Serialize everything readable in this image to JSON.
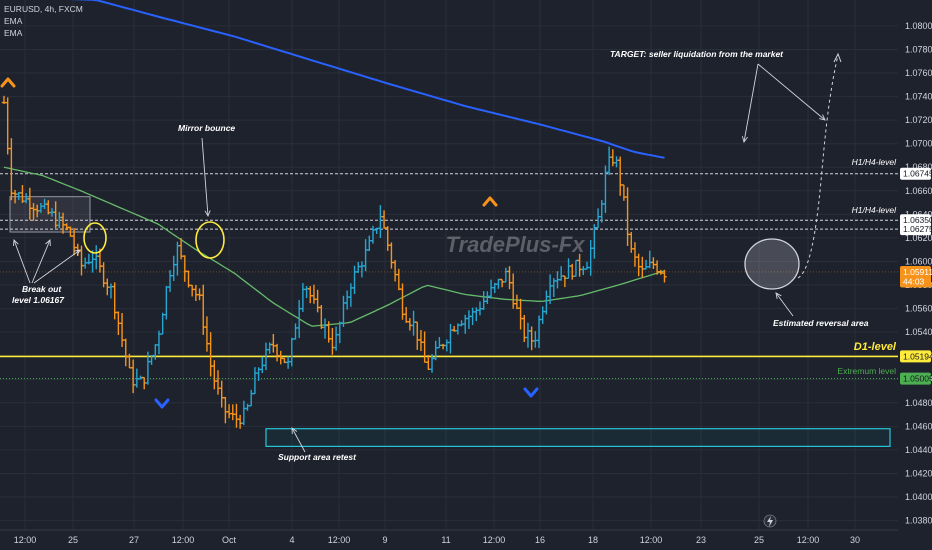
{
  "header": {
    "symbol": "EURUSD, 4h, FXCM",
    "indicator_1": "EMA",
    "indicator_2": "EMA"
  },
  "watermark": "TradePlus-Fx",
  "chart_data": {
    "type": "candlestick",
    "title": "EURUSD, 4h, FXCM",
    "ylim": [
      1.0372,
      1.0822
    ],
    "y_ticks": [
      "1.08000",
      "1.07800",
      "1.07600",
      "1.07400",
      "1.07200",
      "1.07000",
      "1.06800",
      "1.06600",
      "1.06400",
      "1.06200",
      "1.06000",
      "1.05800",
      "1.05600",
      "1.05400",
      "1.05200",
      "1.05000",
      "1.04800",
      "1.04600",
      "1.04400",
      "1.04200",
      "1.04000",
      "1.03800"
    ],
    "x_ticks": [
      "12:00",
      "25",
      "27",
      "12:00",
      "Oct",
      "4",
      "12:00",
      "9",
      "11",
      "12:00",
      "16",
      "18",
      "12:00",
      "23",
      "25",
      "12:00",
      "30"
    ],
    "price_labels": [
      {
        "text": "1.06745",
        "value": 1.06745,
        "color": "#ffffff",
        "text_color": "#131722"
      },
      {
        "text": "1.06350",
        "value": 1.0635,
        "color": "#ffffff",
        "text_color": "#131722"
      },
      {
        "text": "1.06275",
        "value": 1.06275,
        "color": "#ffffff",
        "text_color": "#131722"
      },
      {
        "text": "1.05911",
        "value": 1.05911,
        "color": "#f7931a",
        "text_color": "#ffffff"
      },
      {
        "text": "44:03",
        "value": 1.0583,
        "color": "#f7931a",
        "text_color": "#ffffff"
      },
      {
        "text": "1.05194",
        "value": 1.05194,
        "color": "#ffeb3b",
        "text_color": "#131722"
      },
      {
        "text": "1.05005",
        "value": 1.05005,
        "color": "#4caf50",
        "text_color": "#131722"
      }
    ],
    "levels": [
      {
        "label": "H1/H4-level",
        "value": 1.06745,
        "style": "dashed",
        "color": "#d1d4dc"
      },
      {
        "label": "H1/H4-level",
        "value": 1.0635,
        "style": "dashed",
        "color": "#d1d4dc"
      },
      {
        "label": "",
        "value": 1.06275,
        "style": "dashed",
        "color": "#d1d4dc"
      },
      {
        "label": "D1-level",
        "value": 1.05194,
        "style": "solid",
        "color": "#ffeb3b"
      },
      {
        "label": "Extremum  level",
        "value": 1.05005,
        "style": "dotted",
        "color": "#4caf50"
      }
    ],
    "annotations": [
      {
        "text": "Break out",
        "text2": "level 1.06167"
      },
      {
        "text": "Mirror bounce"
      },
      {
        "text": "Support area retest"
      },
      {
        "text": "TARGET: seller liquidation from the market"
      },
      {
        "text": "Estimated reversal area"
      }
    ],
    "support_zone": {
      "top": 1.0458,
      "bottom": 1.0443
    },
    "ema_slow_anchors": [
      {
        "t": 0,
        "v": 1.0825
      },
      {
        "t": 0.12,
        "v": 1.0822
      },
      {
        "t": 0.2,
        "v": 1.0808
      },
      {
        "t": 0.3,
        "v": 1.0791
      },
      {
        "t": 0.4,
        "v": 1.0771
      },
      {
        "t": 0.5,
        "v": 1.0751
      },
      {
        "t": 0.6,
        "v": 1.0732
      },
      {
        "t": 0.7,
        "v": 1.0716
      },
      {
        "t": 0.78,
        "v": 1.0702
      },
      {
        "t": 0.82,
        "v": 1.0693
      },
      {
        "t": 0.86,
        "v": 1.0688
      }
    ],
    "ema_fast_anchors": [
      {
        "t": 0,
        "v": 1.068
      },
      {
        "t": 0.05,
        "v": 1.0673
      },
      {
        "t": 0.1,
        "v": 1.066
      },
      {
        "t": 0.15,
        "v": 1.0646
      },
      {
        "t": 0.2,
        "v": 1.0632
      },
      {
        "t": 0.25,
        "v": 1.061
      },
      {
        "t": 0.3,
        "v": 1.059
      },
      {
        "t": 0.35,
        "v": 1.0565
      },
      {
        "t": 0.4,
        "v": 1.0545
      },
      {
        "t": 0.45,
        "v": 1.0548
      },
      {
        "t": 0.5,
        "v": 1.0563
      },
      {
        "t": 0.55,
        "v": 1.058
      },
      {
        "t": 0.6,
        "v": 1.0572
      },
      {
        "t": 0.65,
        "v": 1.0568
      },
      {
        "t": 0.7,
        "v": 1.0566
      },
      {
        "t": 0.75,
        "v": 1.0571
      },
      {
        "t": 0.8,
        "v": 1.058
      },
      {
        "t": 0.86,
        "v": 1.0592
      }
    ],
    "price_anchors": [
      {
        "t": 0.0,
        "v": 1.0735
      },
      {
        "t": 0.01,
        "v": 1.066
      },
      {
        "t": 0.03,
        "v": 1.0652
      },
      {
        "t": 0.06,
        "v": 1.064
      },
      {
        "t": 0.085,
        "v": 1.0625
      },
      {
        "t": 0.1,
        "v": 1.0596
      },
      {
        "t": 0.115,
        "v": 1.0605
      },
      {
        "t": 0.14,
        "v": 1.0575
      },
      {
        "t": 0.165,
        "v": 1.05
      },
      {
        "t": 0.18,
        "v": 1.0497
      },
      {
        "t": 0.2,
        "v": 1.0535
      },
      {
        "t": 0.215,
        "v": 1.059
      },
      {
        "t": 0.225,
        "v": 1.0612
      },
      {
        "t": 0.24,
        "v": 1.0585
      },
      {
        "t": 0.255,
        "v": 1.0566
      },
      {
        "t": 0.27,
        "v": 1.0508
      },
      {
        "t": 0.285,
        "v": 1.0475
      },
      {
        "t": 0.3,
        "v": 1.0466
      },
      {
        "t": 0.315,
        "v": 1.047
      },
      {
        "t": 0.33,
        "v": 1.0508
      },
      {
        "t": 0.35,
        "v": 1.053
      },
      {
        "t": 0.37,
        "v": 1.0512
      },
      {
        "t": 0.39,
        "v": 1.0585
      },
      {
        "t": 0.41,
        "v": 1.0553
      },
      {
        "t": 0.43,
        "v": 1.0528
      },
      {
        "t": 0.45,
        "v": 1.058
      },
      {
        "t": 0.475,
        "v": 1.0612
      },
      {
        "t": 0.49,
        "v": 1.064
      },
      {
        "t": 0.505,
        "v": 1.06
      },
      {
        "t": 0.52,
        "v": 1.0558
      },
      {
        "t": 0.535,
        "v": 1.0545
      },
      {
        "t": 0.55,
        "v": 1.0508
      },
      {
        "t": 0.57,
        "v": 1.053
      },
      {
        "t": 0.59,
        "v": 1.055
      },
      {
        "t": 0.61,
        "v": 1.0555
      },
      {
        "t": 0.635,
        "v": 1.0575
      },
      {
        "t": 0.655,
        "v": 1.059
      },
      {
        "t": 0.675,
        "v": 1.054
      },
      {
        "t": 0.69,
        "v": 1.0532
      },
      {
        "t": 0.71,
        "v": 1.0585
      },
      {
        "t": 0.73,
        "v": 1.059
      },
      {
        "t": 0.76,
        "v": 1.06
      },
      {
        "t": 0.775,
        "v": 1.064
      },
      {
        "t": 0.785,
        "v": 1.068
      },
      {
        "t": 0.795,
        "v": 1.069
      },
      {
        "t": 0.805,
        "v": 1.066
      },
      {
        "t": 0.815,
        "v": 1.061
      },
      {
        "t": 0.83,
        "v": 1.059
      },
      {
        "t": 0.845,
        "v": 1.0598
      },
      {
        "t": 0.86,
        "v": 1.0591
      }
    ]
  },
  "footer": {
    "symbol_icon": "lightning-icon"
  }
}
